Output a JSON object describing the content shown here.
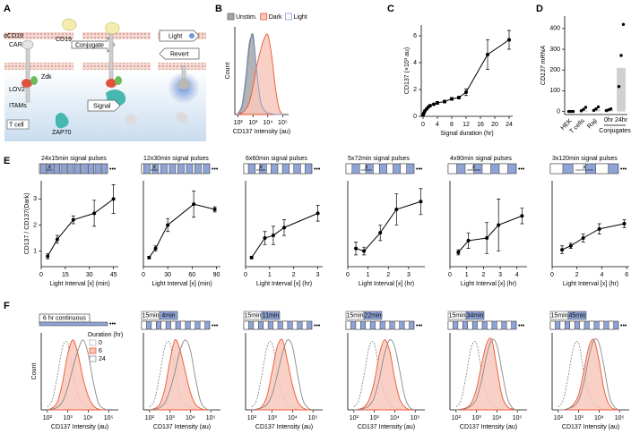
{
  "panel_labels": [
    "A",
    "B",
    "C",
    "D",
    "E",
    "F"
  ],
  "diagram": {
    "car_target": "αCD19",
    "car": "CAR",
    "cd19": "CD19",
    "conjugate": "Conjugate",
    "light": "Light",
    "revert": "Revert",
    "lov2": "LOV2",
    "zdk": "Zdk",
    "itams": "ITAMs",
    "t_cell": "T cell",
    "zap70": "ZAP70",
    "signal": "Signal"
  },
  "schematic_symbols": {
    "interval": "x",
    "more": "•••"
  },
  "chart_data": [
    {
      "type": "density",
      "xscale": "log",
      "xlim": [
        60,
        250000
      ],
      "ylim": [
        0,
        110
      ],
      "xticks": [
        {
          "value": 100,
          "label": "10²"
        },
        {
          "value": 1000,
          "label": "10³"
        },
        {
          "value": 10000,
          "label": "10⁴"
        },
        {
          "value": 100000,
          "label": "10⁵"
        }
      ],
      "xlabel": "CD137 Intensity (au)",
      "ylabel": "Count",
      "legend": "top",
      "x": [
        100,
        178,
        316,
        562,
        1000,
        1778,
        3162,
        5623,
        10000,
        17783,
        31623,
        56234,
        100000
      ],
      "series": [
        {
          "name": "Unstim.",
          "color": "#666666",
          "fill_color": "#a6a6a6",
          "values": [
            2,
            10,
            40,
            85,
            100,
            55,
            15,
            4,
            1,
            0,
            0,
            0,
            0
          ]
        },
        {
          "name": "Dark",
          "color": "#ee5533",
          "fill_color": "#f8c8bb",
          "values": [
            0,
            2,
            6,
            15,
            35,
            60,
            80,
            95,
            100,
            75,
            35,
            8,
            0
          ]
        },
        {
          "name": "Light",
          "color": "#7f9fd8",
          "values": [
            2,
            12,
            45,
            90,
            95,
            55,
            18,
            6,
            2,
            1,
            0,
            0,
            0
          ]
        }
      ]
    },
    {
      "type": "line",
      "x": [
        0,
        0.25,
        0.5,
        1,
        1.5,
        2,
        3,
        4,
        6,
        8,
        10,
        12,
        18,
        24
      ],
      "values": [
        0.1,
        0.25,
        0.4,
        0.55,
        0.7,
        0.8,
        0.9,
        1.0,
        1.1,
        1.3,
        1.4,
        1.8,
        4.6,
        5.7
      ],
      "errors": [
        0,
        0,
        0,
        0,
        0,
        0,
        0,
        0.1,
        0.1,
        0.1,
        0.1,
        0.25,
        1.1,
        0.7
      ],
      "color": "#000000",
      "xlim": [
        -0.5,
        25
      ],
      "ylim": [
        0,
        6.8
      ],
      "xticks": [
        0,
        4,
        8,
        12,
        16,
        20,
        24
      ],
      "yticks": [
        0,
        2,
        4,
        6
      ],
      "xlabel": "Signal duration (hr)",
      "ylabel": "CD137 (×10³ au)"
    },
    {
      "type": "bar_dots",
      "categories": [
        "HEK",
        "T cells",
        "Raji",
        "0hr",
        "24hr"
      ],
      "values": [
        0,
        5,
        10,
        10,
        210
      ],
      "points": [
        [
          0,
          0,
          0
        ],
        [
          3,
          10,
          20
        ],
        [
          5,
          12,
          22
        ],
        [
          4,
          8,
          12
        ],
        [
          120,
          270,
          420
        ]
      ],
      "color": "#d0d0d0",
      "group_label": "Conjugates",
      "ylim": [
        -15,
        460
      ],
      "yticks": [
        0,
        100,
        200,
        300,
        400
      ],
      "ylabel": "CD137 mRNA"
    },
    {
      "type": "line",
      "title": "24x15min signal pulses",
      "x": [
        4,
        10,
        20,
        33,
        45
      ],
      "values": [
        0.8,
        1.45,
        2.2,
        2.45,
        3.0
      ],
      "errors": [
        0.1,
        0.15,
        0.15,
        0.5,
        0.55
      ],
      "color": "#000000",
      "xlim": [
        0,
        48
      ],
      "ylim": [
        0.4,
        3.7
      ],
      "xticks": [
        0,
        15,
        30,
        45
      ],
      "yticks": [
        1,
        2,
        3
      ],
      "xlabel": "Light Interval [x] (min)",
      "ylabel": "CD137 / CD137(Dark)"
    },
    {
      "type": "line",
      "title": "12x30min signal pulses",
      "x": [
        7,
        15,
        30,
        62,
        88
      ],
      "values": [
        0.75,
        1.1,
        2.0,
        2.8,
        2.6
      ],
      "errors": [
        0.05,
        0.1,
        0.25,
        0.5,
        0.1
      ],
      "color": "#000000",
      "xlim": [
        0,
        95
      ],
      "ylim": [
        0.4,
        3.7
      ],
      "xticks": [
        0,
        30,
        60,
        90
      ],
      "xlabel": "Light Interval [x] (min)"
    },
    {
      "type": "line",
      "title": "6x60min signal pulses",
      "x": [
        0.25,
        0.8,
        1.15,
        1.6,
        3
      ],
      "values": [
        0.75,
        1.5,
        1.6,
        1.9,
        2.45
      ],
      "errors": [
        0.05,
        0.25,
        0.35,
        0.3,
        0.3
      ],
      "color": "#000000",
      "xlim": [
        0,
        3.2
      ],
      "ylim": [
        0.4,
        3.7
      ],
      "xticks": [
        0,
        1,
        2,
        3
      ],
      "xlabel": "Light Interval [x] (hr)"
    },
    {
      "type": "line",
      "title": "5x72min signal pulses",
      "x": [
        0.4,
        0.8,
        1.6,
        2.4,
        3.6
      ],
      "values": [
        1.1,
        1.0,
        1.7,
        2.6,
        2.9
      ],
      "errors": [
        0.25,
        0.15,
        0.3,
        0.6,
        0.5
      ],
      "color": "#000000",
      "xlim": [
        0,
        3.8
      ],
      "ylim": [
        0.4,
        3.7
      ],
      "xticks": [
        0,
        1,
        2,
        3
      ],
      "xlabel": "Light Interval [x] (hr)"
    },
    {
      "type": "line",
      "title": "4x90min signal pulses",
      "x": [
        0.5,
        1.1,
        2.2,
        2.9,
        4.3
      ],
      "values": [
        0.95,
        1.4,
        1.5,
        2.0,
        2.35
      ],
      "errors": [
        0.1,
        0.3,
        0.6,
        1.0,
        0.3
      ],
      "color": "#000000",
      "xlim": [
        0,
        4.6
      ],
      "ylim": [
        0.4,
        3.7
      ],
      "xticks": [
        0,
        1,
        2,
        3,
        4
      ],
      "xlabel": "Light Interval [x] (hr)"
    },
    {
      "type": "line",
      "title": "3x120min signal pulses",
      "x": [
        0.8,
        1.5,
        2.5,
        3.8,
        5.8
      ],
      "values": [
        1.05,
        1.2,
        1.5,
        1.85,
        2.05
      ],
      "errors": [
        0.15,
        0.1,
        0.15,
        0.2,
        0.15
      ],
      "color": "#000000",
      "xlim": [
        0,
        6.2
      ],
      "ylim": [
        0.4,
        3.7
      ],
      "xticks": [
        0,
        2,
        4,
        6
      ],
      "xlabel": "Light Interval [x] (hr)"
    },
    {
      "type": "density",
      "xscale": "log",
      "xlim": [
        50,
        300000
      ],
      "ylim": [
        0,
        110
      ],
      "schematic_label": "6 hr continuous",
      "xticks": [
        {
          "value": 100,
          "label": "10²"
        },
        {
          "value": 1000,
          "label": "10³"
        },
        {
          "value": 10000,
          "label": "10⁴"
        },
        {
          "value": 100000,
          "label": "10⁵"
        }
      ],
      "xlabel": "CD137 Intensity (au)",
      "ylabel": "Count",
      "legend": "top-right",
      "legend_title": "Duration (hr)",
      "x": [
        100,
        178,
        316,
        562,
        1000,
        1778,
        3162,
        5623,
        10000,
        17783,
        31623,
        56234,
        100000
      ],
      "series": [
        {
          "name": "0",
          "color": "#888888",
          "dash": true,
          "values": [
            4,
            15,
            50,
            90,
            95,
            55,
            22,
            8,
            3,
            1,
            0,
            0,
            0
          ]
        },
        {
          "name": "6",
          "color": "#ee5533",
          "fill_color": "#f8c8bb",
          "values": [
            0,
            3,
            12,
            40,
            80,
            100,
            80,
            45,
            20,
            6,
            1,
            0,
            0
          ]
        },
        {
          "name": "24",
          "color": "#888888",
          "values": [
            0,
            1,
            4,
            12,
            32,
            60,
            85,
            100,
            80,
            40,
            10,
            2,
            0
          ]
        }
      ]
    },
    {
      "type": "density",
      "xscale": "log",
      "xlim": [
        50,
        300000
      ],
      "ylim": [
        0,
        110
      ],
      "schematic_labels": [
        "15min",
        "4min"
      ],
      "xticks": [
        {
          "value": 100,
          "label": "10²"
        },
        {
          "value": 1000,
          "label": "10³"
        },
        {
          "value": 10000,
          "label": "10⁴"
        },
        {
          "value": 100000,
          "label": "10⁵"
        }
      ],
      "xlabel": "CD137 Intensity (au)",
      "x": [
        100,
        178,
        316,
        562,
        1000,
        1778,
        3162,
        5623,
        10000,
        17783,
        31623,
        56234,
        100000
      ],
      "series": [
        {
          "color": "#888888",
          "dash": true,
          "values": [
            4,
            15,
            50,
            90,
            95,
            55,
            22,
            8,
            3,
            1,
            0,
            0,
            0
          ]
        },
        {
          "color": "#ee5533",
          "fill_color": "#f8c8bb",
          "values": [
            0,
            2,
            8,
            30,
            70,
            100,
            85,
            55,
            25,
            8,
            2,
            0,
            0
          ]
        },
        {
          "color": "#888888",
          "values": [
            0,
            1,
            3,
            10,
            28,
            55,
            85,
            100,
            85,
            45,
            12,
            2,
            0
          ]
        }
      ]
    },
    {
      "type": "density",
      "xscale": "log",
      "xlim": [
        50,
        300000
      ],
      "ylim": [
        0,
        110
      ],
      "schematic_labels": [
        "15min",
        "11min"
      ],
      "xticks": [
        {
          "value": 100,
          "label": "10²"
        },
        {
          "value": 1000,
          "label": "10³"
        },
        {
          "value": 10000,
          "label": "10⁴"
        },
        {
          "value": 100000,
          "label": "10⁵"
        }
      ],
      "xlabel": "CD137 Intensity (au)",
      "x": [
        100,
        178,
        316,
        562,
        1000,
        1778,
        3162,
        5623,
        10000,
        17783,
        31623,
        56234,
        100000
      ],
      "series": [
        {
          "color": "#888888",
          "dash": true,
          "values": [
            4,
            15,
            50,
            90,
            95,
            55,
            22,
            8,
            3,
            1,
            0,
            0,
            0
          ]
        },
        {
          "color": "#ee5533",
          "fill_color": "#f8c8bb",
          "values": [
            0,
            1,
            5,
            20,
            55,
            90,
            100,
            70,
            35,
            12,
            3,
            0,
            0
          ]
        },
        {
          "color": "#888888",
          "values": [
            0,
            1,
            3,
            8,
            22,
            50,
            80,
            100,
            90,
            50,
            15,
            3,
            0
          ]
        }
      ]
    },
    {
      "type": "density",
      "xscale": "log",
      "xlim": [
        50,
        300000
      ],
      "ylim": [
        0,
        110
      ],
      "schematic_labels": [
        "15min",
        "22min"
      ],
      "xticks": [
        {
          "value": 100,
          "label": "10²"
        },
        {
          "value": 1000,
          "label": "10³"
        },
        {
          "value": 10000,
          "label": "10⁴"
        },
        {
          "value": 100000,
          "label": "10⁵"
        }
      ],
      "xlabel": "CD137 Intensity (au)",
      "x": [
        100,
        178,
        316,
        562,
        1000,
        1778,
        3162,
        5623,
        10000,
        17783,
        31623,
        56234,
        100000
      ],
      "series": [
        {
          "color": "#888888",
          "dash": true,
          "values": [
            4,
            15,
            50,
            90,
            95,
            55,
            22,
            8,
            3,
            1,
            0,
            0,
            0
          ]
        },
        {
          "color": "#ee5533",
          "fill_color": "#f8c8bb",
          "values": [
            0,
            1,
            4,
            15,
            40,
            80,
            100,
            85,
            45,
            15,
            4,
            0,
            0
          ]
        },
        {
          "color": "#888888",
          "values": [
            0,
            0,
            2,
            6,
            18,
            45,
            80,
            100,
            90,
            55,
            18,
            3,
            0
          ]
        }
      ]
    },
    {
      "type": "density",
      "xscale": "log",
      "xlim": [
        50,
        300000
      ],
      "ylim": [
        0,
        110
      ],
      "schematic_labels": [
        "15min",
        "34min"
      ],
      "xticks": [
        {
          "value": 100,
          "label": "10²"
        },
        {
          "value": 1000,
          "label": "10³"
        },
        {
          "value": 10000,
          "label": "10⁴"
        },
        {
          "value": 100000,
          "label": "10⁵"
        }
      ],
      "xlabel": "CD137 Intensity (au)",
      "x": [
        100,
        178,
        316,
        562,
        1000,
        1778,
        3162,
        5623,
        10000,
        17783,
        31623,
        56234,
        100000
      ],
      "series": [
        {
          "color": "#888888",
          "dash": true,
          "values": [
            4,
            15,
            50,
            90,
            95,
            55,
            22,
            8,
            3,
            1,
            0,
            0,
            0
          ]
        },
        {
          "color": "#ee5533",
          "fill_color": "#f8c8bb",
          "values": [
            0,
            1,
            3,
            10,
            30,
            65,
            95,
            100,
            60,
            20,
            5,
            1,
            0
          ]
        },
        {
          "color": "#888888",
          "values": [
            0,
            0,
            2,
            6,
            16,
            42,
            78,
            100,
            92,
            55,
            18,
            3,
            0
          ]
        }
      ]
    },
    {
      "type": "density",
      "xscale": "log",
      "xlim": [
        50,
        300000
      ],
      "ylim": [
        0,
        110
      ],
      "schematic_labels": [
        "15min",
        "45min"
      ],
      "xticks": [
        {
          "value": 100,
          "label": "10²"
        },
        {
          "value": 1000,
          "label": "10³"
        },
        {
          "value": 10000,
          "label": "10⁴"
        },
        {
          "value": 100000,
          "label": "10⁵"
        }
      ],
      "xlabel": "CD137 Intensity (au)",
      "x": [
        100,
        178,
        316,
        562,
        1000,
        1778,
        3162,
        5623,
        10000,
        17783,
        31623,
        56234,
        100000
      ],
      "series": [
        {
          "color": "#888888",
          "dash": true,
          "values": [
            4,
            15,
            50,
            90,
            95,
            55,
            22,
            8,
            3,
            1,
            0,
            0,
            0
          ]
        },
        {
          "color": "#ee5533",
          "fill_color": "#f8c8bb",
          "values": [
            0,
            0,
            2,
            8,
            22,
            55,
            90,
            100,
            70,
            28,
            7,
            1,
            0
          ]
        },
        {
          "color": "#888888",
          "values": [
            0,
            0,
            2,
            5,
            14,
            38,
            75,
            100,
            95,
            60,
            20,
            4,
            0
          ]
        }
      ]
    }
  ]
}
